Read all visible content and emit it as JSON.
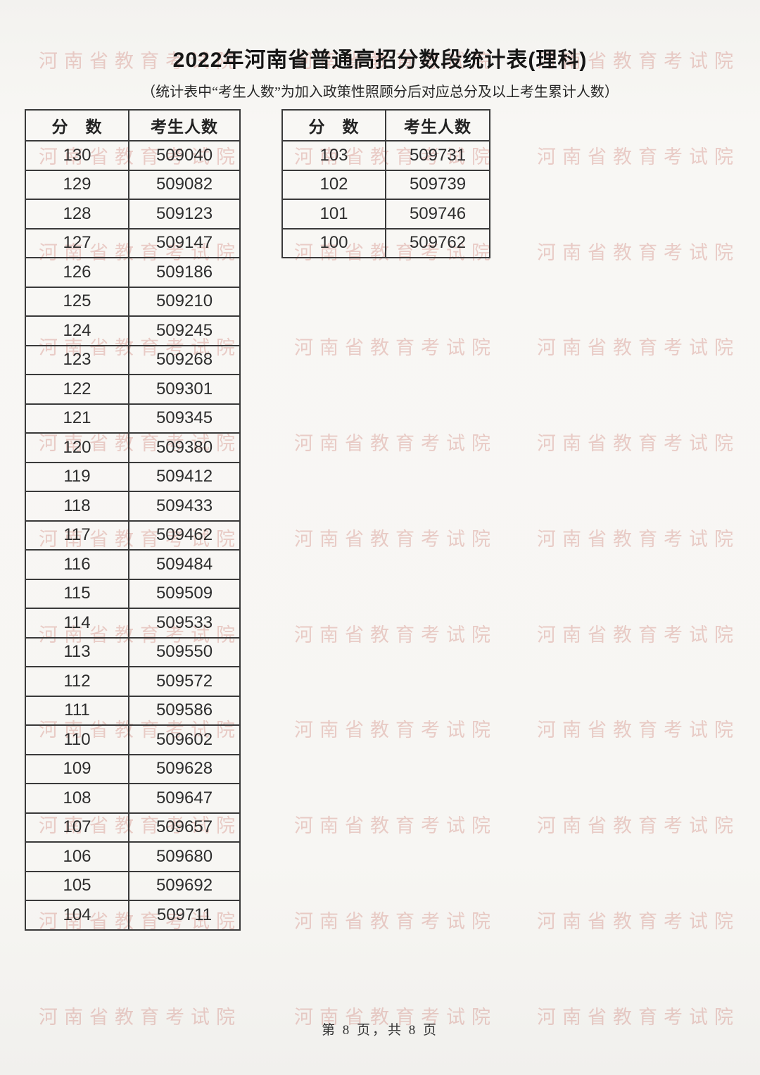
{
  "title": "2022年河南省普通高招分数段统计表(理科)",
  "subtitle": "（统计表中“考生人数”为加入政策性照顾分后对应总分及以上考生累计人数）",
  "watermark": {
    "text": "河南省教育考试院",
    "color": "#c6685c"
  },
  "tables": {
    "left": {
      "headers": [
        "分　数",
        "考生人数"
      ],
      "rows": [
        [
          "130",
          "509040"
        ],
        [
          "129",
          "509082"
        ],
        [
          "128",
          "509123"
        ],
        [
          "127",
          "509147"
        ],
        [
          "126",
          "509186"
        ],
        [
          "125",
          "509210"
        ],
        [
          "124",
          "509245"
        ],
        [
          "123",
          "509268"
        ],
        [
          "122",
          "509301"
        ],
        [
          "121",
          "509345"
        ],
        [
          "120",
          "509380"
        ],
        [
          "119",
          "509412"
        ],
        [
          "118",
          "509433"
        ],
        [
          "117",
          "509462"
        ],
        [
          "116",
          "509484"
        ],
        [
          "115",
          "509509"
        ],
        [
          "114",
          "509533"
        ],
        [
          "113",
          "509550"
        ],
        [
          "112",
          "509572"
        ],
        [
          "111",
          "509586"
        ],
        [
          "110",
          "509602"
        ],
        [
          "109",
          "509628"
        ],
        [
          "108",
          "509647"
        ],
        [
          "107",
          "509657"
        ],
        [
          "106",
          "509680"
        ],
        [
          "105",
          "509692"
        ],
        [
          "104",
          "509711"
        ]
      ]
    },
    "right": {
      "headers": [
        "分　数",
        "考生人数"
      ],
      "rows": [
        [
          "103",
          "509731"
        ],
        [
          "102",
          "509739"
        ],
        [
          "101",
          "509746"
        ],
        [
          "100",
          "509762"
        ]
      ]
    }
  },
  "footer": {
    "page_label": "第 8 页，共 8 页"
  }
}
